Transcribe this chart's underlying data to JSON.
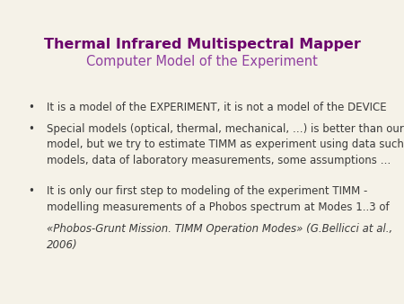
{
  "title_line1": "Thermal Infrared Multispectral Mapper",
  "title_line2": "Computer Model of the Experiment",
  "title_color1": "#6B006B",
  "title_color2": "#9040A0",
  "background_color": "#F5F2E8",
  "text_color": "#3A3A3A",
  "bullet_char": "•",
  "bullet1": "It is a model of the EXPERIMENT, it is not a model of the DEVICE",
  "bullet2_normal": "Special models (optical, thermal, mechanical, …) is better than our\nmodel, but we try to estimate TIMM as experiment using data such\nmodels, data of laboratory measurements, some assumptions …",
  "bullet3_normal": "It is only our first step to modeling of the experiment TIMM -\nmodelling measurements of a Phobos spectrum at Modes 1..3 of",
  "bullet3_italic": "«Phobos-Grunt Mission. TIMM Operation Modes» (G.Bellicci at al.,\n2006)",
  "title1_fontsize": 11.5,
  "title2_fontsize": 10.5,
  "bullet_fontsize": 8.5,
  "figsize": [
    4.5,
    3.38
  ],
  "dpi": 100
}
